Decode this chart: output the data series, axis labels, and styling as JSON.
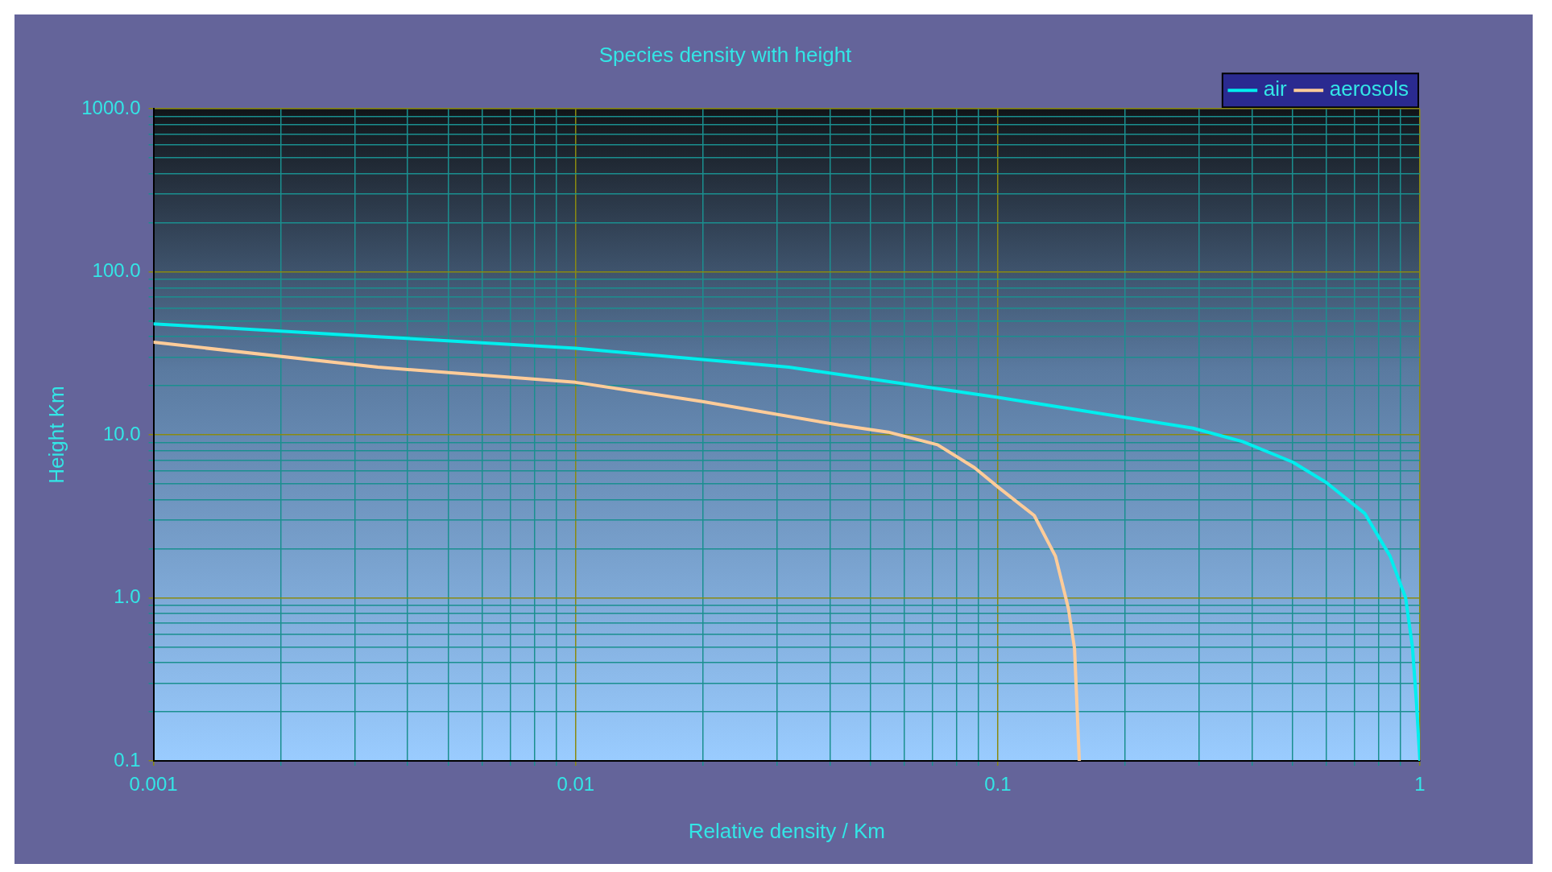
{
  "chart_data": {
    "type": "line",
    "title": "Species density with height",
    "xlabel": "Relative density / Km",
    "ylabel": "Height Km",
    "log": "xy",
    "grid": true,
    "legend": "top right",
    "marker": "none",
    "line_style": "solid",
    "xlim": [
      0.001,
      1
    ],
    "ylim": [
      0.1,
      1000
    ],
    "xticks": [
      {
        "value": 0.001,
        "label": "0.001"
      },
      {
        "value": 0.002,
        "label": null
      },
      {
        "value": 0.003,
        "label": null
      },
      {
        "value": 0.004,
        "label": null
      },
      {
        "value": 0.005,
        "label": null
      },
      {
        "value": 0.006,
        "label": null
      },
      {
        "value": 0.007,
        "label": null
      },
      {
        "value": 0.008,
        "label": null
      },
      {
        "value": 0.009,
        "label": null
      },
      {
        "value": 0.01,
        "label": "0.01"
      },
      {
        "value": 0.02,
        "label": null
      },
      {
        "value": 0.03,
        "label": null
      },
      {
        "value": 0.04,
        "label": null
      },
      {
        "value": 0.05,
        "label": null
      },
      {
        "value": 0.06,
        "label": null
      },
      {
        "value": 0.07,
        "label": null
      },
      {
        "value": 0.08,
        "label": null
      },
      {
        "value": 0.09,
        "label": null
      },
      {
        "value": 0.1,
        "label": "0.1"
      },
      {
        "value": 0.2,
        "label": null
      },
      {
        "value": 0.3,
        "label": null
      },
      {
        "value": 0.4,
        "label": null
      },
      {
        "value": 0.5,
        "label": null
      },
      {
        "value": 0.6,
        "label": null
      },
      {
        "value": 0.7,
        "label": null
      },
      {
        "value": 0.8,
        "label": null
      },
      {
        "value": 0.9,
        "label": null
      },
      1
    ],
    "yticks": [
      {
        "value": 0.1,
        "label": "0.1"
      },
      {
        "value": 0.2,
        "label": null
      },
      {
        "value": 0.3,
        "label": null
      },
      {
        "value": 0.4,
        "label": null
      },
      {
        "value": 0.5,
        "label": null
      },
      {
        "value": 0.6,
        "label": null
      },
      {
        "value": 0.7,
        "label": null
      },
      {
        "value": 0.8,
        "label": null
      },
      {
        "value": 0.9,
        "label": null
      },
      {
        "value": 1,
        "label": "1.0"
      },
      {
        "value": 2,
        "label": null
      },
      {
        "value": 3,
        "label": null
      },
      {
        "value": 4,
        "label": null
      },
      {
        "value": 5,
        "label": null
      },
      {
        "value": 6,
        "label": null
      },
      {
        "value": 7,
        "label": null
      },
      {
        "value": 8,
        "label": null
      },
      {
        "value": 9,
        "label": null
      },
      {
        "value": 10,
        "label": "10.0"
      },
      {
        "value": 20,
        "label": null
      },
      {
        "value": 30,
        "label": null
      },
      {
        "value": 40,
        "label": null
      },
      {
        "value": 50,
        "label": null
      },
      {
        "value": 60,
        "label": null
      },
      {
        "value": 70,
        "label": null
      },
      {
        "value": 80,
        "label": null
      },
      {
        "value": 90,
        "label": null
      },
      {
        "value": 100,
        "label": "100.0"
      },
      {
        "value": 200,
        "label": null
      },
      {
        "value": 300,
        "label": null
      },
      {
        "value": 400,
        "label": null
      },
      {
        "value": 500,
        "label": null
      },
      {
        "value": 600,
        "label": null
      },
      {
        "value": 700,
        "label": null
      },
      {
        "value": 800,
        "label": null
      },
      {
        "value": 900,
        "label": null
      },
      {
        "value": 1000,
        "label": "1000.0"
      }
    ],
    "series": [
      {
        "name": "air",
        "color": "#00eeee",
        "x": [
          0.001,
          0.0034,
          0.01,
          0.032,
          0.1,
          0.29,
          0.38,
          0.5,
          0.6,
          0.74,
          0.85,
          0.925,
          0.96,
          0.98,
          1
        ],
        "values": [
          48,
          40,
          34,
          26,
          17,
          11,
          9.1,
          6.8,
          5.1,
          3.3,
          1.8,
          1.0,
          0.5,
          0.24,
          0.1
        ]
      },
      {
        "name": "aerosols",
        "color": "#ffcc99",
        "x": [
          0.001,
          0.0034,
          0.01,
          0.02,
          0.042,
          0.055,
          0.072,
          0.088,
          0.1,
          0.122,
          0.137,
          0.147,
          0.152,
          0.156
        ],
        "values": [
          37,
          26,
          21,
          16,
          11.5,
          10.4,
          8.7,
          6.3,
          4.8,
          3.2,
          1.8,
          0.86,
          0.49,
          0.1
        ]
      }
    ]
  }
}
